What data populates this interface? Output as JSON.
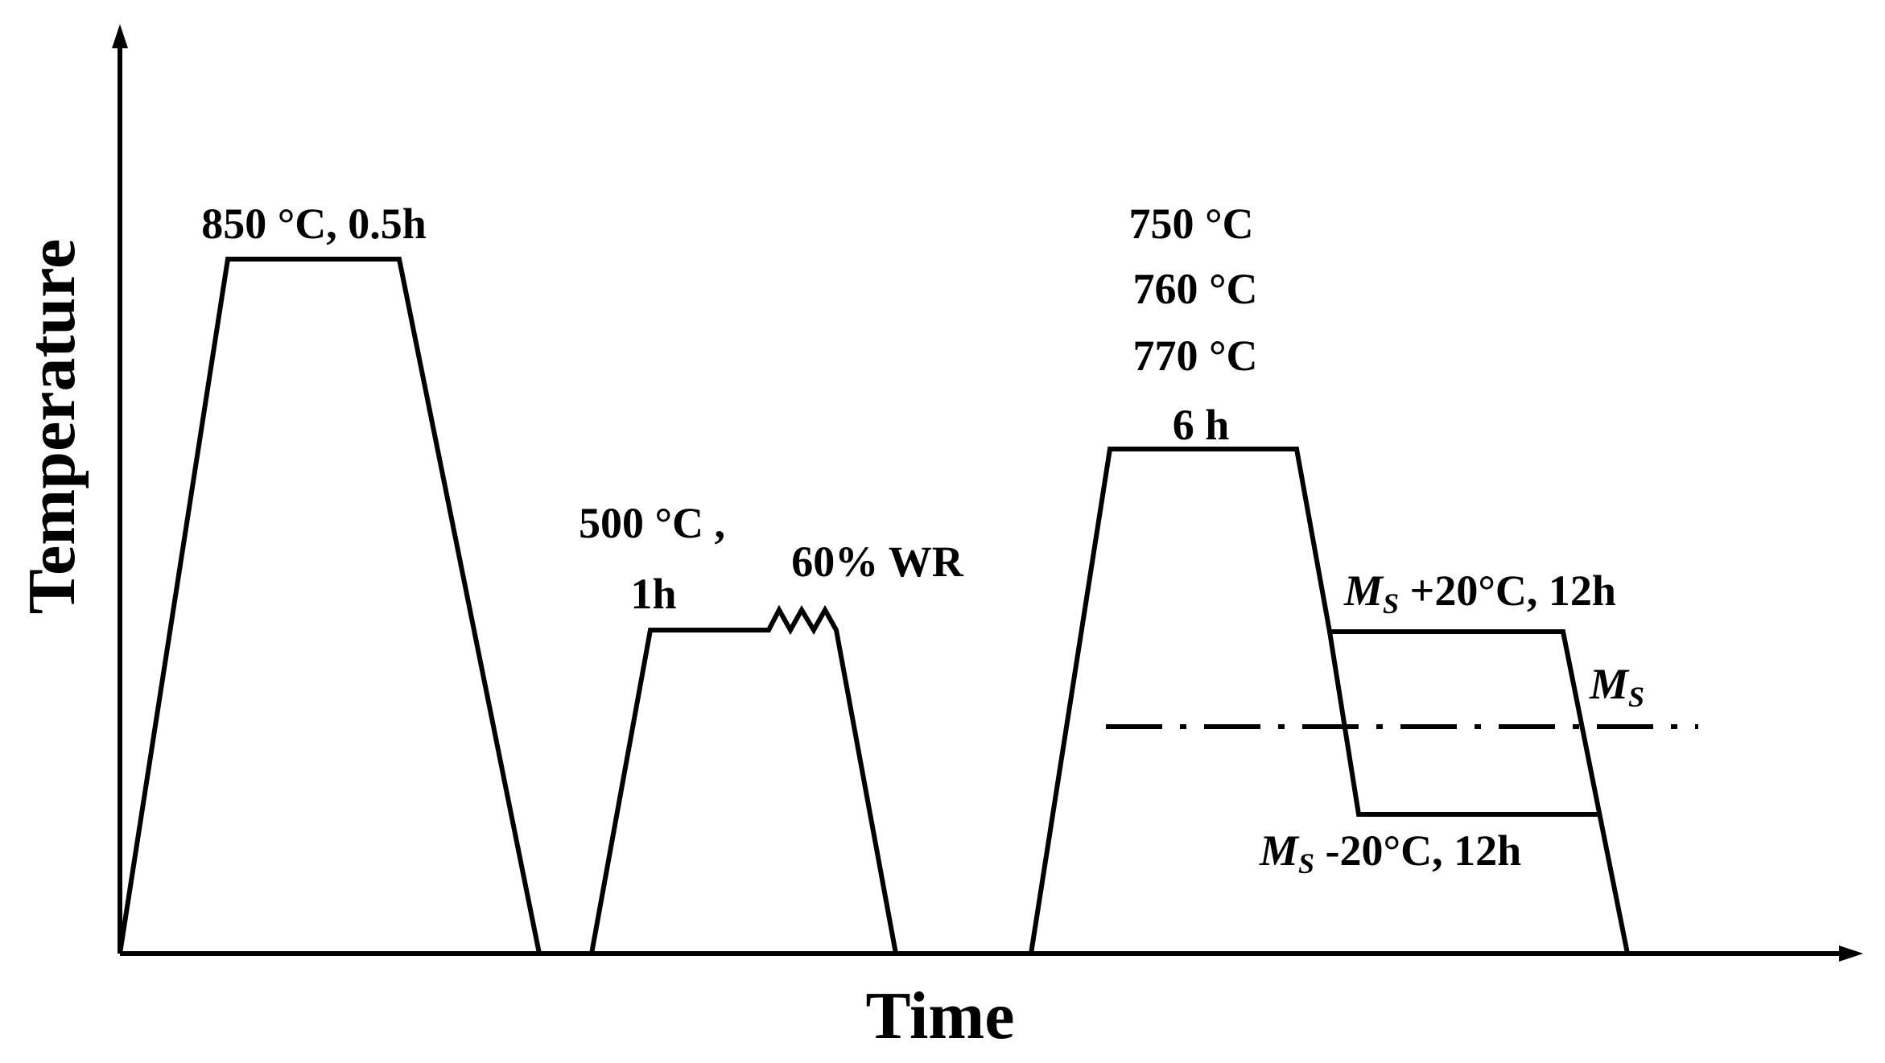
{
  "axes": {
    "x_label": "Time",
    "y_label": "Temperature"
  },
  "steps": {
    "austenitize": {
      "label": "850 °C, 0.5h"
    },
    "warm_roll": {
      "temp_label": "500 °C ,",
      "time_label": "1h",
      "reduction_label": "60% WR"
    },
    "intercritical": {
      "temps": [
        "750 °C",
        "760 °C",
        "770 °C"
      ],
      "time_label": "6 h"
    },
    "isothermal_above": {
      "ms": "M",
      "ms_sub": "S",
      "rest": " +20°C, 12h"
    },
    "ms_line": {
      "ms": "M",
      "ms_sub": "S"
    },
    "isothermal_below": {
      "ms": "M",
      "ms_sub": "S",
      "rest": " -20°C, 12h"
    }
  }
}
